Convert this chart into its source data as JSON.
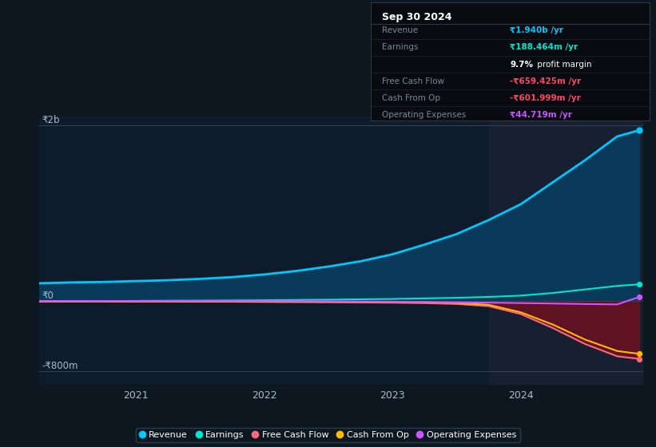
{
  "bg_color": "#0d1720",
  "plot_bg_color": "#0d1b2a",
  "highlight_bg_color": "#162030",
  "y_labels": [
    "₹2b",
    "₹0",
    "-₹800m"
  ],
  "ylim": [
    -950,
    2100
  ],
  "xlim_start": 2020.25,
  "xlim_end": 2024.95,
  "x_ticks": [
    2021,
    2022,
    2023,
    2024
  ],
  "highlight_start": 2023.75,
  "series": {
    "revenue": {
      "color": "#00c8ff",
      "label": "Revenue",
      "fill_color": "#0a3a5a",
      "values_x": [
        2020.25,
        2020.5,
        2020.75,
        2021.0,
        2021.25,
        2021.5,
        2021.75,
        2022.0,
        2022.25,
        2022.5,
        2022.75,
        2023.0,
        2023.25,
        2023.5,
        2023.75,
        2024.0,
        2024.25,
        2024.5,
        2024.75,
        2024.92
      ],
      "values_y": [
        200,
        210,
        215,
        225,
        235,
        250,
        270,
        300,
        340,
        390,
        450,
        530,
        640,
        760,
        920,
        1100,
        1350,
        1600,
        1870,
        1940
      ]
    },
    "earnings": {
      "color": "#00e5cc",
      "label": "Earnings",
      "values_x": [
        2020.25,
        2020.5,
        2020.75,
        2021.0,
        2021.25,
        2021.5,
        2021.75,
        2022.0,
        2022.25,
        2022.5,
        2022.75,
        2023.0,
        2023.25,
        2023.5,
        2023.75,
        2024.0,
        2024.25,
        2024.5,
        2024.75,
        2024.92
      ],
      "values_y": [
        -5,
        -3,
        -2,
        0,
        2,
        3,
        5,
        7,
        10,
        14,
        18,
        22,
        28,
        35,
        45,
        60,
        90,
        130,
        170,
        188
      ]
    },
    "free_cash_flow": {
      "color": "#ff6680",
      "label": "Free Cash Flow",
      "values_x": [
        2020.25,
        2020.5,
        2020.75,
        2021.0,
        2021.25,
        2021.5,
        2021.75,
        2022.0,
        2022.25,
        2022.5,
        2022.75,
        2023.0,
        2023.25,
        2023.5,
        2023.75,
        2024.0,
        2024.25,
        2024.5,
        2024.75,
        2024.92
      ],
      "values_y": [
        -8,
        -8,
        -8,
        -9,
        -9,
        -10,
        -10,
        -12,
        -14,
        -16,
        -18,
        -20,
        -25,
        -35,
        -60,
        -150,
        -310,
        -490,
        -630,
        -659
      ]
    },
    "cash_from_op": {
      "color": "#ffbb00",
      "label": "Cash From Op",
      "values_x": [
        2020.25,
        2020.5,
        2020.75,
        2021.0,
        2021.25,
        2021.5,
        2021.75,
        2022.0,
        2022.25,
        2022.5,
        2022.75,
        2023.0,
        2023.25,
        2023.5,
        2023.75,
        2024.0,
        2024.25,
        2024.5,
        2024.75,
        2024.92
      ],
      "values_y": [
        -5,
        -5,
        -5,
        -5,
        -6,
        -6,
        -6,
        -7,
        -8,
        -9,
        -11,
        -13,
        -16,
        -22,
        -45,
        -130,
        -270,
        -440,
        -570,
        -602
      ]
    },
    "operating_expenses": {
      "color": "#cc55ff",
      "label": "Operating Expenses",
      "values_x": [
        2020.25,
        2020.5,
        2020.75,
        2021.0,
        2021.25,
        2021.5,
        2021.75,
        2022.0,
        2022.25,
        2022.5,
        2022.75,
        2023.0,
        2023.25,
        2023.5,
        2023.75,
        2024.0,
        2024.25,
        2024.5,
        2024.75,
        2024.92
      ],
      "values_y": [
        -2,
        -2,
        -2,
        -2,
        -3,
        -3,
        -3,
        -4,
        -5,
        -6,
        -7,
        -9,
        -12,
        -16,
        -20,
        -25,
        -30,
        -36,
        -40,
        44
      ]
    }
  },
  "info_box": {
    "title": "Sep 30 2024",
    "rows": [
      {
        "label": "Revenue",
        "value": "₹1.940b /yr",
        "value_color": "#00c8ff"
      },
      {
        "label": "Earnings",
        "value": "₹188.464m /yr",
        "value_color": "#00e5cc"
      },
      {
        "label": "",
        "value": "9.7% profit margin",
        "value_color": "#ffffff",
        "bold_part": "9.7%"
      },
      {
        "label": "Free Cash Flow",
        "value": "-₹659.425m /yr",
        "value_color": "#ff4466"
      },
      {
        "label": "Cash From Op",
        "value": "-₹601.999m /yr",
        "value_color": "#ff4466"
      },
      {
        "label": "Operating Expenses",
        "value": "₹44.719m /yr",
        "value_color": "#cc55ff"
      }
    ]
  },
  "legend": [
    {
      "label": "Revenue",
      "color": "#00c8ff"
    },
    {
      "label": "Earnings",
      "color": "#00e5cc"
    },
    {
      "label": "Free Cash Flow",
      "color": "#ff6680"
    },
    {
      "label": "Cash From Op",
      "color": "#ffbb00"
    },
    {
      "label": "Operating Expenses",
      "color": "#cc55ff"
    }
  ]
}
